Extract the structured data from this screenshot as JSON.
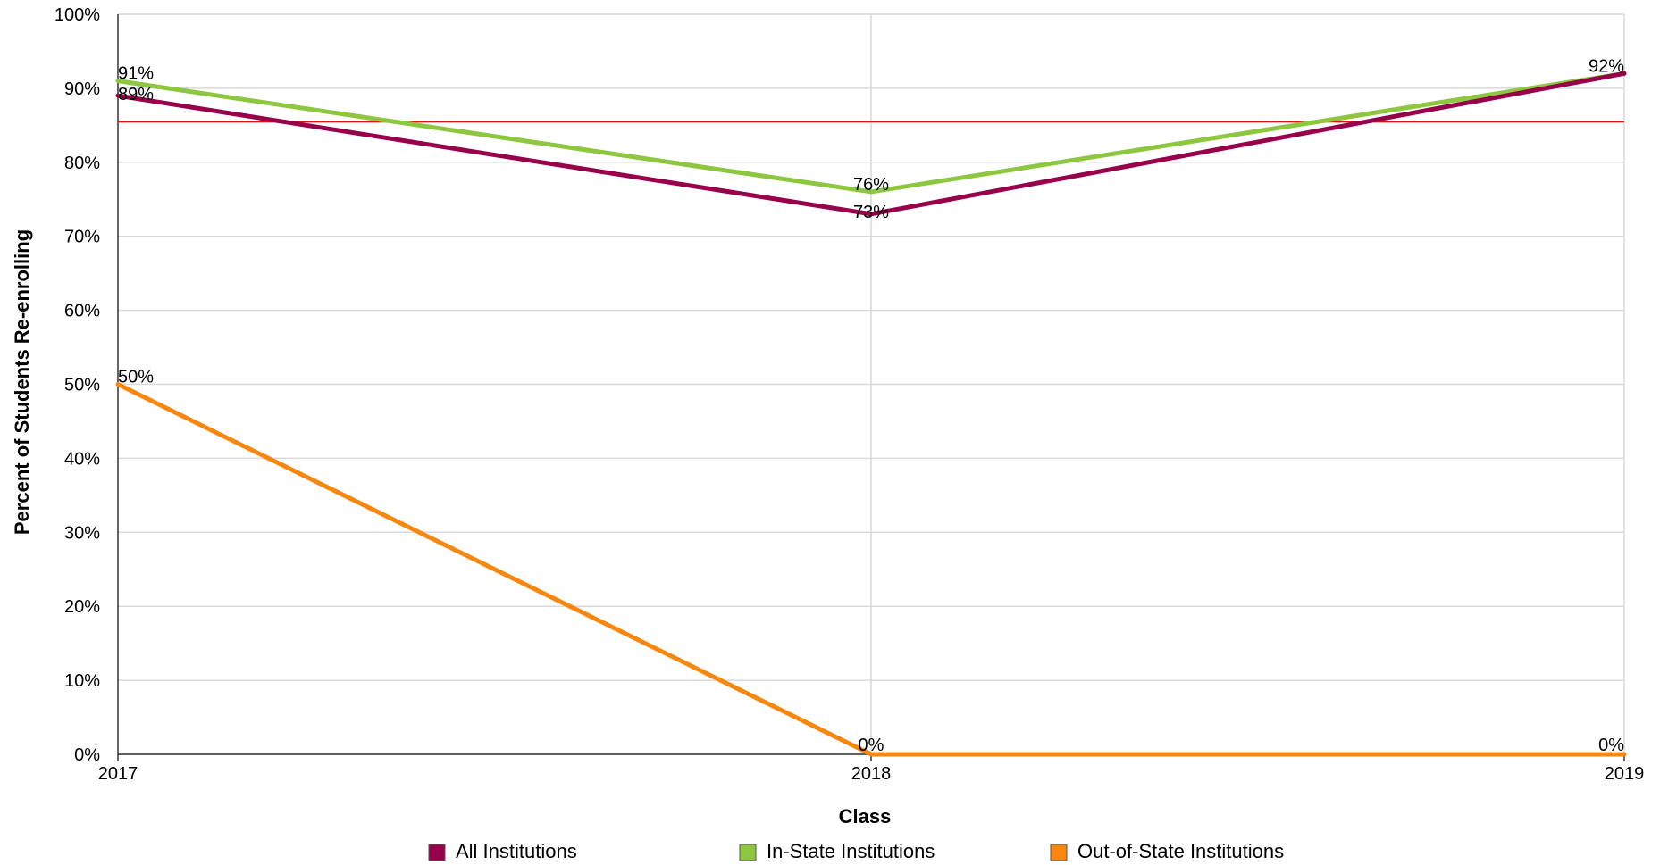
{
  "chart_data": {
    "type": "line",
    "title": "",
    "xlabel": "Class",
    "ylabel": "Percent of Students Re-enrolling",
    "x": [
      "2017",
      "2018",
      "2019"
    ],
    "ylim": [
      0,
      100
    ],
    "yticks": [
      "0%",
      "10%",
      "20%",
      "30%",
      "40%",
      "50%",
      "60%",
      "70%",
      "80%",
      "90%",
      "100%"
    ],
    "grid": true,
    "legend_position": "bottom",
    "reference_line": {
      "value": 85.5,
      "color": "#dd1111"
    },
    "series": [
      {
        "name": "All Institutions",
        "color": "#99004c",
        "values": [
          89,
          73,
          92
        ],
        "labels": [
          "89%",
          "73%",
          ""
        ]
      },
      {
        "name": "In-State Institutions",
        "color": "#8dc63f",
        "values": [
          91,
          76,
          92
        ],
        "labels": [
          "91%",
          "76%",
          "92%"
        ]
      },
      {
        "name": "Out-of-State Institutions",
        "color": "#f7870f",
        "values": [
          50,
          0,
          0
        ],
        "labels": [
          "50%",
          "0%",
          "0%"
        ]
      }
    ]
  }
}
